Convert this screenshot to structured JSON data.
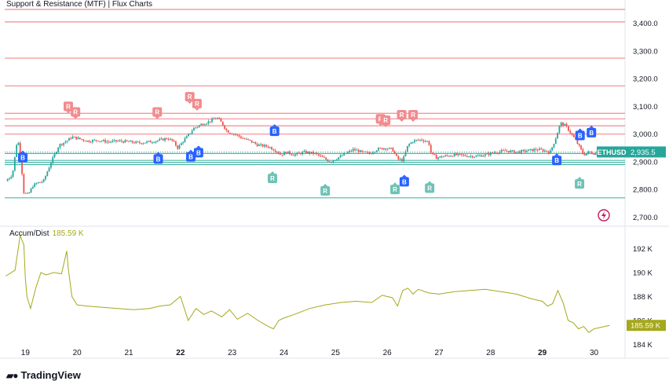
{
  "title": "Support & Resistance (MTF) | Flux Charts",
  "symbol": "ETHUSD",
  "brand": "TradingView",
  "price_label": "2,935.5",
  "indicator": {
    "name": "Accum/Dist",
    "value": "185.59 K"
  },
  "colors": {
    "resistance": "#f28b8f",
    "support": "#4cb5a8",
    "up": "#26a69a",
    "down": "#ef5350",
    "buy": "#2962ff",
    "accum": "#a5a81a",
    "symbol_box": "#26a69a"
  },
  "chart_data": [
    {
      "type": "candlestick",
      "x_ticks": [
        "19",
        "20",
        "21",
        "22",
        "23",
        "24",
        "25",
        "26",
        "27",
        "28",
        "29",
        "30"
      ],
      "bold_ticks": [
        "22",
        "29"
      ],
      "y_ticks": [
        "3,400.0",
        "3,300.0",
        "3,200.0",
        "3,100.0",
        "3,000.0",
        "2,900.0",
        "2,800.0",
        "2,700.0"
      ],
      "y_tick_values": [
        3400,
        3300,
        3200,
        3100,
        3000,
        2900,
        2800,
        2700
      ],
      "ylim": [
        2673,
        3450
      ],
      "xlim": [
        18.6,
        30.6
      ],
      "last_price": 2935.5,
      "resistance_levels": [
        3450,
        3405,
        3274,
        3174,
        3075,
        3055,
        3030,
        3000
      ],
      "support_levels": [
        2930,
        2905,
        2898,
        2890,
        2770
      ],
      "close_path": [
        [
          18.62,
          2830
        ],
        [
          18.75,
          2855
        ],
        [
          18.85,
          2990
        ],
        [
          18.93,
          2870
        ],
        [
          18.97,
          2790
        ],
        [
          19.05,
          2780
        ],
        [
          19.15,
          2815
        ],
        [
          19.25,
          2825
        ],
        [
          19.35,
          2830
        ],
        [
          19.5,
          2900
        ],
        [
          19.65,
          2960
        ],
        [
          19.8,
          2975
        ],
        [
          19.9,
          2990
        ],
        [
          20.0,
          2985
        ],
        [
          20.2,
          2975
        ],
        [
          20.4,
          2978
        ],
        [
          20.6,
          2972
        ],
        [
          20.8,
          2975
        ],
        [
          21.0,
          2972
        ],
        [
          21.2,
          2968
        ],
        [
          21.4,
          2972
        ],
        [
          21.6,
          2978
        ],
        [
          21.75,
          2985
        ],
        [
          21.85,
          2975
        ],
        [
          21.95,
          2950
        ],
        [
          22.05,
          2975
        ],
        [
          22.15,
          2995
        ],
        [
          22.25,
          3020
        ],
        [
          22.4,
          3035
        ],
        [
          22.55,
          3045
        ],
        [
          22.7,
          3060
        ],
        [
          22.8,
          3040
        ],
        [
          22.9,
          3010
        ],
        [
          23.05,
          3000
        ],
        [
          23.2,
          2985
        ],
        [
          23.35,
          2975
        ],
        [
          23.5,
          2960
        ],
        [
          23.7,
          2955
        ],
        [
          23.85,
          2940
        ],
        [
          23.95,
          2925
        ],
        [
          24.05,
          2935
        ],
        [
          24.2,
          2925
        ],
        [
          24.4,
          2935
        ],
        [
          24.6,
          2930
        ],
        [
          24.8,
          2910
        ],
        [
          24.9,
          2900
        ],
        [
          25.05,
          2915
        ],
        [
          25.2,
          2930
        ],
        [
          25.35,
          2945
        ],
        [
          25.5,
          2935
        ],
        [
          25.65,
          2930
        ],
        [
          25.8,
          2945
        ],
        [
          25.95,
          2950
        ],
        [
          26.1,
          2945
        ],
        [
          26.2,
          2910
        ],
        [
          26.3,
          2905
        ],
        [
          26.4,
          2960
        ],
        [
          26.5,
          2975
        ],
        [
          26.65,
          2980
        ],
        [
          26.8,
          2972
        ],
        [
          26.85,
          2930
        ],
        [
          26.95,
          2915
        ],
        [
          27.1,
          2920
        ],
        [
          27.3,
          2925
        ],
        [
          27.5,
          2922
        ],
        [
          27.7,
          2920
        ],
        [
          27.9,
          2925
        ],
        [
          28.1,
          2935
        ],
        [
          28.3,
          2940
        ],
        [
          28.5,
          2935
        ],
        [
          28.7,
          2940
        ],
        [
          28.9,
          2945
        ],
        [
          29.05,
          2940
        ],
        [
          29.15,
          2935
        ],
        [
          29.25,
          2980
        ],
        [
          29.35,
          3040
        ],
        [
          29.45,
          3030
        ],
        [
          29.6,
          2990
        ],
        [
          29.7,
          2960
        ],
        [
          29.8,
          2925
        ],
        [
          29.9,
          2935
        ],
        [
          30.05,
          2928
        ],
        [
          30.2,
          2932
        ],
        [
          30.3,
          2935.5
        ]
      ],
      "markers": [
        {
          "label": "B",
          "x": 18.95,
          "price": 2915,
          "side": "buy"
        },
        {
          "label": "R",
          "x": 19.83,
          "price": 3100,
          "side": "resistance"
        },
        {
          "label": "R",
          "x": 19.97,
          "price": 3080,
          "side": "resistance"
        },
        {
          "label": "B",
          "x": 21.57,
          "price": 2910,
          "side": "buy"
        },
        {
          "label": "R",
          "x": 21.55,
          "price": 3080,
          "side": "resistance"
        },
        {
          "label": "B",
          "x": 22.2,
          "price": 2918,
          "side": "buy"
        },
        {
          "label": "B",
          "x": 22.35,
          "price": 2933,
          "side": "buy"
        },
        {
          "label": "R",
          "x": 22.18,
          "price": 3135,
          "side": "resistance"
        },
        {
          "label": "R",
          "x": 22.32,
          "price": 3110,
          "side": "resistance"
        },
        {
          "label": "B",
          "x": 23.82,
          "price": 3010,
          "side": "buy"
        },
        {
          "label": "R",
          "x": 23.78,
          "price": 2840,
          "side": "support"
        },
        {
          "label": "R",
          "x": 24.8,
          "price": 2795,
          "side": "support"
        },
        {
          "label": "R",
          "x": 25.87,
          "price": 3055,
          "side": "resistance"
        },
        {
          "label": "R",
          "x": 25.97,
          "price": 3050,
          "side": "resistance"
        },
        {
          "label": "R",
          "x": 26.28,
          "price": 3070,
          "side": "resistance"
        },
        {
          "label": "R",
          "x": 26.5,
          "price": 3070,
          "side": "resistance"
        },
        {
          "label": "B",
          "x": 26.33,
          "price": 2828,
          "side": "buy"
        },
        {
          "label": "R",
          "x": 26.15,
          "price": 2800,
          "side": "support"
        },
        {
          "label": "R",
          "x": 26.82,
          "price": 2805,
          "side": "support"
        },
        {
          "label": "B",
          "x": 29.28,
          "price": 2905,
          "side": "buy"
        },
        {
          "label": "B",
          "x": 29.73,
          "price": 2995,
          "side": "buy"
        },
        {
          "label": "B",
          "x": 29.95,
          "price": 3005,
          "side": "buy"
        },
        {
          "label": "R",
          "x": 29.72,
          "price": 2820,
          "side": "support"
        }
      ]
    },
    {
      "type": "line",
      "name": "Accum/Dist",
      "y_ticks": [
        "192 K",
        "190 K",
        "188 K",
        "186 K",
        "184 K"
      ],
      "y_tick_values": [
        192,
        190,
        188,
        186,
        184
      ],
      "ylim": [
        183.9,
        193.6
      ],
      "last_value": 185.59,
      "x": [
        18.62,
        18.8,
        18.9,
        18.97,
        19.0,
        19.03,
        19.1,
        19.2,
        19.3,
        19.4,
        19.55,
        19.7,
        19.8,
        19.83,
        19.9,
        20.0,
        20.2,
        20.5,
        20.8,
        21.1,
        21.4,
        21.6,
        21.8,
        22.0,
        22.15,
        22.3,
        22.45,
        22.6,
        22.8,
        22.95,
        23.1,
        23.3,
        23.5,
        23.7,
        23.8,
        23.9,
        24.0,
        24.2,
        24.5,
        24.8,
        25.1,
        25.4,
        25.7,
        25.9,
        26.1,
        26.2,
        26.3,
        26.4,
        26.5,
        26.6,
        26.8,
        27.0,
        27.3,
        27.6,
        27.9,
        28.2,
        28.5,
        28.8,
        29.0,
        29.1,
        29.2,
        29.3,
        29.4,
        29.5,
        29.6,
        29.7,
        29.8,
        29.9,
        30.0,
        30.1,
        30.3
      ],
      "y": [
        189.7,
        190.2,
        193.1,
        192.3,
        189.5,
        188.0,
        187.0,
        188.7,
        190.0,
        189.8,
        190.0,
        189.9,
        191.8,
        190.3,
        188.0,
        187.3,
        187.2,
        187.1,
        187.0,
        186.9,
        187.0,
        187.2,
        187.3,
        188.0,
        186.0,
        187.0,
        186.5,
        186.8,
        186.3,
        186.9,
        186.1,
        186.6,
        186.0,
        185.5,
        185.3,
        186.0,
        186.2,
        186.5,
        187.0,
        187.3,
        187.5,
        187.6,
        187.5,
        188.1,
        187.9,
        187.2,
        188.5,
        188.7,
        188.2,
        188.6,
        188.3,
        188.2,
        188.4,
        188.5,
        188.6,
        188.4,
        188.2,
        187.8,
        187.6,
        187.2,
        187.4,
        188.5,
        187.5,
        186.0,
        185.8,
        185.3,
        185.5,
        185.0,
        185.3,
        185.4,
        185.59
      ]
    }
  ]
}
